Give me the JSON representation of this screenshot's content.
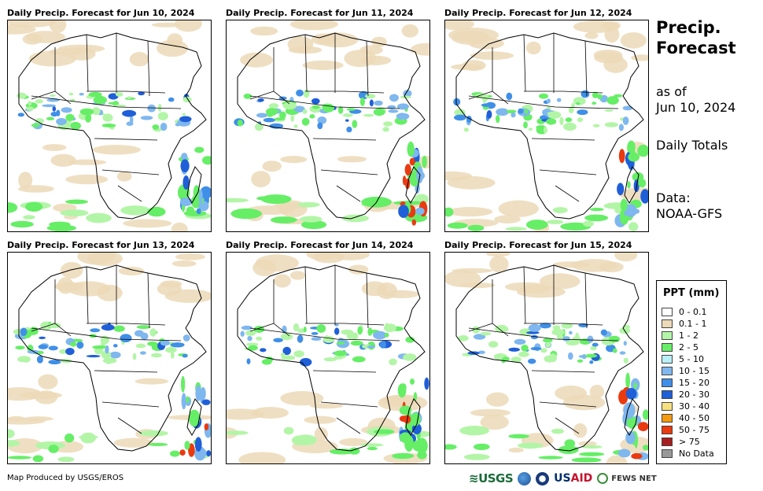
{
  "panels": [
    {
      "title": "Daily Precip. Forecast for Jun 10, 2024"
    },
    {
      "title": "Daily Precip. Forecast for Jun 11, 2024"
    },
    {
      "title": "Daily Precip. Forecast for Jun 12, 2024"
    },
    {
      "title": "Daily Precip. Forecast for Jun 13, 2024"
    },
    {
      "title": "Daily Precip. Forecast for Jun 14, 2024"
    },
    {
      "title": "Daily Precip. Forecast for Jun 15, 2024"
    }
  ],
  "side": {
    "title_line1": "Precip.",
    "title_line2": "Forecast",
    "asof_line1": "as of",
    "asof_line2": "Jun 10, 2024",
    "totals": "Daily Totals",
    "data_line1": "Data:",
    "data_line2": "NOAA-GFS"
  },
  "legend": {
    "title": "PPT (mm)",
    "items": [
      {
        "label": "0 - 0.1",
        "color": "#ffffff"
      },
      {
        "label": "0.1 - 1",
        "color": "#ecd9b7"
      },
      {
        "label": "1 - 2",
        "color": "#b3f5a7"
      },
      {
        "label": "2 - 5",
        "color": "#66ee66"
      },
      {
        "label": "5 - 10",
        "color": "#b7f0f7"
      },
      {
        "label": "10 - 15",
        "color": "#7fb7ef"
      },
      {
        "label": "15 - 20",
        "color": "#3f8fe8"
      },
      {
        "label": "20 - 30",
        "color": "#1f5fd8"
      },
      {
        "label": "30 - 40",
        "color": "#f7e07f"
      },
      {
        "label": "40 - 50",
        "color": "#f29a10"
      },
      {
        "label": "50 - 75",
        "color": "#ea3a10"
      },
      {
        "label": "> 75",
        "color": "#a81e1e"
      },
      {
        "label": "No Data",
        "color": "#999999"
      }
    ]
  },
  "footer": {
    "credit": "Map Produced by USGS/EROS",
    "logo_usgs": "≋USGS",
    "logo_usaid_us": "US",
    "logo_usaid_aid": "AID",
    "logo_fews": "FEWS NET"
  },
  "map_icons": [
    "africa-outline",
    "precipitation-field"
  ]
}
